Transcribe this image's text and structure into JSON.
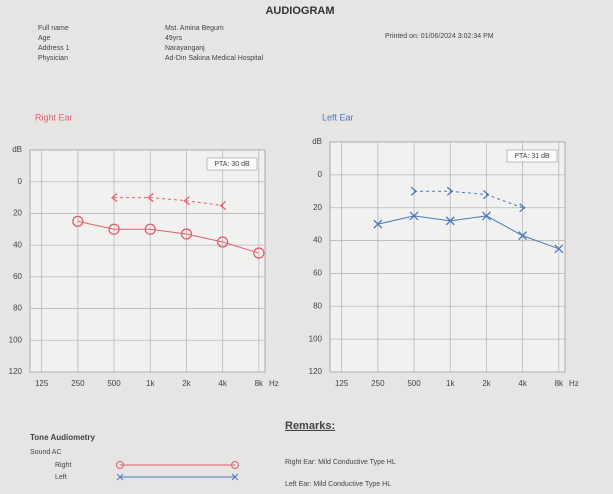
{
  "header": {
    "title": "AUDIOGRAM",
    "fields": [
      {
        "label": "Full name",
        "value": "Mst. Amina Begum"
      },
      {
        "label": "Age",
        "value": "49yrs"
      },
      {
        "label": "Address 1",
        "value": "Narayanganj"
      },
      {
        "label": "Physician",
        "value": "Ad-Din Sakina Medical Hospital"
      }
    ],
    "printed": "Printed on: 01/06/2024 3:02:34 PM"
  },
  "chart_data": [
    {
      "type": "line",
      "title": "Right Ear",
      "title_color": "#e0606e",
      "annotation": "PTA: 30 dB",
      "xscale": "log",
      "yreverse": true,
      "grid": true,
      "xlabel": "Hz",
      "ylabel": "dB",
      "x": [
        250,
        500,
        1000,
        2000,
        4000,
        8000
      ],
      "series": [
        {
          "color": "#e0606e",
          "marker": "circle",
          "dashed": false,
          "values": [
            25,
            30,
            30,
            33,
            38,
            45
          ]
        },
        {
          "color": "#e0606e",
          "marker": "bracket-left",
          "dashed": true,
          "values": [
            null,
            10,
            10,
            12,
            15,
            null
          ]
        }
      ],
      "xlim": [
        100,
        9000
      ],
      "ylim": [
        -20,
        120
      ],
      "xticks": [
        125,
        250,
        500,
        {
          "value": 1000,
          "label": "1k"
        },
        {
          "value": 2000,
          "label": "2k"
        },
        {
          "value": 4000,
          "label": "4k"
        },
        {
          "value": 8000,
          "label": "8k"
        }
      ],
      "yticks": [
        0,
        20,
        40,
        60,
        80,
        100,
        120
      ]
    },
    {
      "type": "line",
      "title": "Left Ear",
      "title_color": "#4a78c0",
      "annotation": "PTA: 31 dB",
      "xscale": "log",
      "yreverse": true,
      "grid": true,
      "xlabel": "Hz",
      "ylabel": "dB",
      "x": [
        250,
        500,
        1000,
        2000,
        4000,
        8000
      ],
      "series": [
        {
          "color": "#4a78c0",
          "marker": "x",
          "dashed": false,
          "values": [
            30,
            25,
            28,
            25,
            37,
            45
          ]
        },
        {
          "color": "#4a78c0",
          "marker": "bracket-right",
          "dashed": true,
          "values": [
            null,
            10,
            10,
            12,
            20,
            null
          ]
        }
      ],
      "xlim": [
        100,
        9000
      ],
      "ylim": [
        -20,
        120
      ],
      "xticks": [
        125,
        250,
        500,
        {
          "value": 1000,
          "label": "1k"
        },
        {
          "value": 2000,
          "label": "2k"
        },
        {
          "value": 4000,
          "label": "4k"
        },
        {
          "value": 8000,
          "label": "8k"
        }
      ],
      "yticks": [
        0,
        20,
        40,
        60,
        80,
        100,
        120
      ]
    }
  ],
  "tone": {
    "title": "Tone Audiometry",
    "subtitle": "Sound AC",
    "rows": [
      "Right",
      "Left"
    ]
  },
  "remarks": {
    "title": "Remarks:",
    "lines": [
      "Right Ear: Mild Conductive Type HL",
      "Left Ear: Mild Conductive Type HL"
    ]
  }
}
